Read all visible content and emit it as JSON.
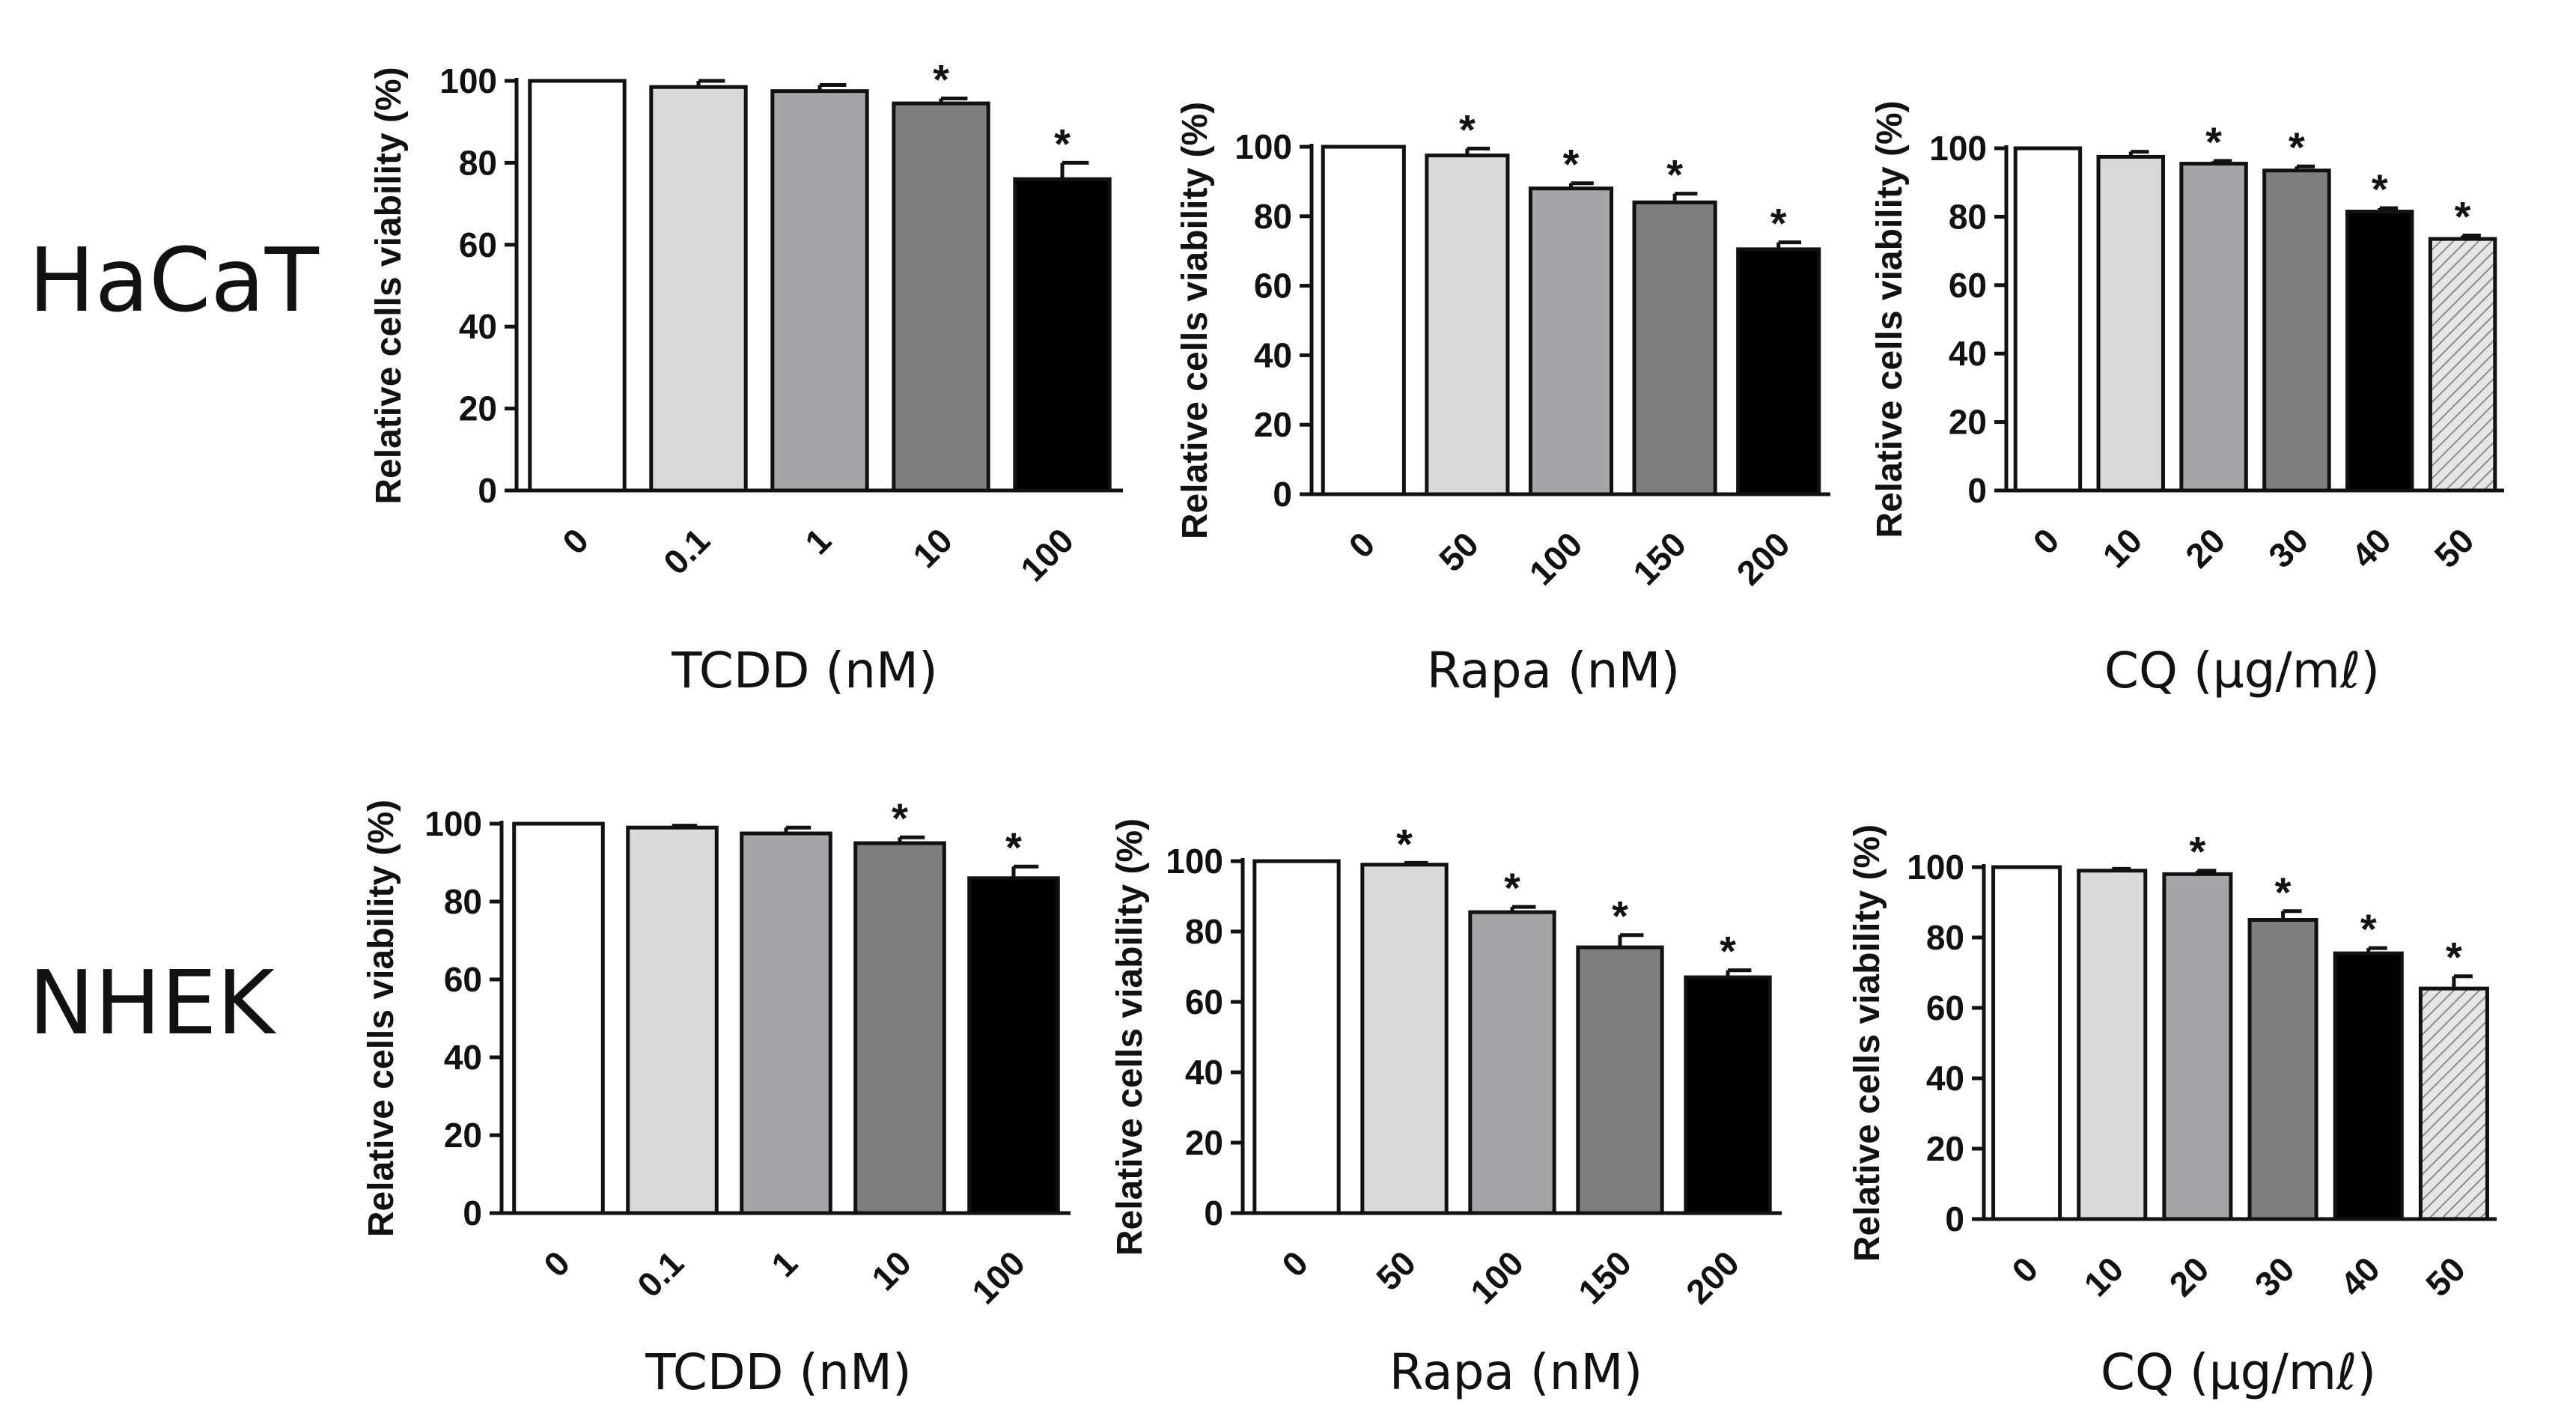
{
  "row_labels": [
    "HaCaT",
    "NHEK"
  ],
  "colors": {
    "white": "#ffffff",
    "light_gray": "#d9d9d9",
    "mid_gray": "#a6a6a8",
    "dark_gray": "#7f7f7f",
    "black": "#000000",
    "hatch": "#bdbdbd",
    "axis": "#111111"
  },
  "chart_data": [
    {
      "id": "hacat-tcdd",
      "type": "bar",
      "row": "HaCaT",
      "xlabel": "TCDD (nM)",
      "ylabel": "Relative cells viability  (%)",
      "ylim": [
        0,
        100
      ],
      "yticks": [
        0,
        20,
        40,
        60,
        80,
        100
      ],
      "categories": [
        "0",
        "0.1",
        "1",
        "10",
        "100"
      ],
      "values": [
        100,
        98.5,
        97.5,
        94.5,
        76
      ],
      "errors": [
        0,
        1.5,
        1.5,
        1.2,
        4
      ],
      "significant": [
        false,
        false,
        false,
        true,
        true
      ],
      "fills": [
        "white",
        "light_gray",
        "mid_gray",
        "dark_gray",
        "black"
      ]
    },
    {
      "id": "hacat-rapa",
      "type": "bar",
      "row": "HaCaT",
      "xlabel": "Rapa (nM)",
      "ylabel": "Relative cells viability  (%)",
      "ylim": [
        0,
        100
      ],
      "yticks": [
        0,
        20,
        40,
        60,
        80,
        100
      ],
      "categories": [
        "0",
        "50",
        "100",
        "150",
        "200"
      ],
      "values": [
        100,
        97.5,
        88,
        84,
        70.5
      ],
      "errors": [
        0,
        2,
        1.5,
        2.5,
        2
      ],
      "significant": [
        false,
        true,
        true,
        true,
        true
      ],
      "fills": [
        "white",
        "light_gray",
        "mid_gray",
        "dark_gray",
        "black"
      ]
    },
    {
      "id": "hacat-cq",
      "type": "bar",
      "row": "HaCaT",
      "xlabel": "CQ (µg/mℓ)",
      "ylabel": "Relative cells viability  (%)",
      "ylim": [
        0,
        100
      ],
      "yticks": [
        0,
        20,
        40,
        60,
        80,
        100
      ],
      "categories": [
        "0",
        "10",
        "20",
        "30",
        "40",
        "50"
      ],
      "values": [
        100,
        97.5,
        95.5,
        93.5,
        81.5,
        73.5
      ],
      "errors": [
        0,
        1.5,
        0.8,
        1.2,
        1,
        1
      ],
      "significant": [
        false,
        false,
        true,
        true,
        true,
        true
      ],
      "fills": [
        "white",
        "light_gray",
        "mid_gray",
        "dark_gray",
        "black",
        "hatch"
      ]
    },
    {
      "id": "nhek-tcdd",
      "type": "bar",
      "row": "NHEK",
      "xlabel": "TCDD (nM)",
      "ylabel": "Relative cells viability  (%)",
      "ylim": [
        0,
        100
      ],
      "yticks": [
        0,
        20,
        40,
        60,
        80,
        100
      ],
      "categories": [
        "0",
        "0.1",
        "1",
        "10",
        "100"
      ],
      "values": [
        100,
        99,
        97.5,
        95,
        86
      ],
      "errors": [
        0,
        0.5,
        1.5,
        1.5,
        3
      ],
      "significant": [
        false,
        false,
        false,
        true,
        true
      ],
      "fills": [
        "white",
        "light_gray",
        "mid_gray",
        "dark_gray",
        "black"
      ]
    },
    {
      "id": "nhek-rapa",
      "type": "bar",
      "row": "NHEK",
      "xlabel": "Rapa (nM)",
      "ylabel": "Relative cells viability  (%)",
      "ylim": [
        0,
        100
      ],
      "yticks": [
        0,
        20,
        40,
        60,
        80,
        100
      ],
      "categories": [
        "0",
        "50",
        "100",
        "150",
        "200"
      ],
      "values": [
        100,
        99,
        85.5,
        75.5,
        67
      ],
      "errors": [
        0,
        0.5,
        1.5,
        3.5,
        2
      ],
      "significant": [
        false,
        true,
        true,
        true,
        true
      ],
      "fills": [
        "white",
        "light_gray",
        "mid_gray",
        "dark_gray",
        "black"
      ]
    },
    {
      "id": "nhek-cq",
      "type": "bar",
      "row": "NHEK",
      "xlabel": "CQ (µg/mℓ)",
      "ylabel": "Relative cells viability  (%)",
      "ylim": [
        0,
        100
      ],
      "yticks": [
        0,
        20,
        40,
        60,
        80,
        100
      ],
      "categories": [
        "0",
        "10",
        "20",
        "30",
        "40",
        "50"
      ],
      "values": [
        100,
        99,
        98,
        85,
        75.5,
        65.5
      ],
      "errors": [
        0,
        0.5,
        1,
        2.5,
        1.5,
        3.5
      ],
      "significant": [
        false,
        false,
        true,
        true,
        true,
        true
      ],
      "fills": [
        "white",
        "light_gray",
        "mid_gray",
        "dark_gray",
        "black",
        "hatch"
      ]
    }
  ]
}
